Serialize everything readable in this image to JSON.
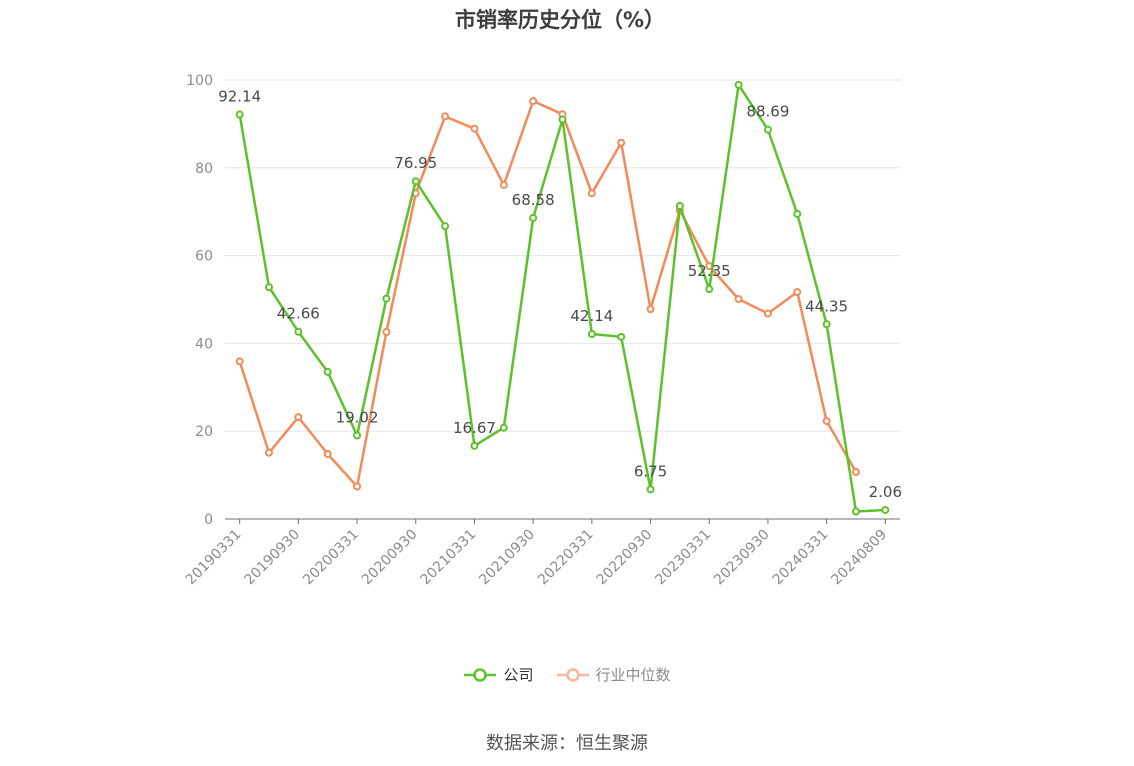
{
  "chart_data": {
    "type": "line",
    "title": "市销率历史分位（%）",
    "x": [
      "20190331",
      "20190630",
      "20190930",
      "20191231",
      "20200331",
      "20200630",
      "20200930",
      "20201231",
      "20210331",
      "20210630",
      "20210930",
      "20211231",
      "20220331",
      "20220630",
      "20220930",
      "20221231",
      "20230331",
      "20230630",
      "20230930",
      "20231231",
      "20240331",
      "20240630",
      "20240809"
    ],
    "x_tick_labels": [
      "20190331",
      "20190930",
      "20200331",
      "20200930",
      "20210331",
      "20210930",
      "20220331",
      "20220930",
      "20230331",
      "20230930",
      "20240331",
      "20240809"
    ],
    "y_ticks": [
      "0",
      "20",
      "40",
      "60",
      "80",
      "100"
    ],
    "ylim": [
      0,
      100
    ],
    "grid": true,
    "legend_position": "bottom",
    "series": [
      {
        "name": "公司",
        "color": "#5dc12c",
        "values": [
          92.14,
          52.8,
          42.66,
          33.5,
          19.02,
          50.2,
          76.95,
          66.7,
          16.67,
          20.8,
          68.58,
          91.0,
          42.14,
          41.5,
          6.75,
          71.3,
          52.35,
          98.9,
          88.69,
          69.5,
          44.35,
          1.7,
          2.06
        ],
        "data_labels": [
          {
            "index": 0,
            "text": "92.14"
          },
          {
            "index": 2,
            "text": "42.66"
          },
          {
            "index": 4,
            "text": "19.02"
          },
          {
            "index": 6,
            "text": "76.95"
          },
          {
            "index": 8,
            "text": "16.67"
          },
          {
            "index": 10,
            "text": "68.58"
          },
          {
            "index": 12,
            "text": "42.14"
          },
          {
            "index": 14,
            "text": "6.75"
          },
          {
            "index": 16,
            "text": "52.35"
          },
          {
            "index": 18,
            "text": "88.69"
          },
          {
            "index": 20,
            "text": "44.35"
          },
          {
            "index": 22,
            "text": "2.06"
          }
        ]
      },
      {
        "name": "行业中位数",
        "color": "#f28a5a",
        "values": [
          35.9,
          15.1,
          23.2,
          14.8,
          7.4,
          42.6,
          74.2,
          91.7,
          88.9,
          76.1,
          95.2,
          92.2,
          74.2,
          85.7,
          47.8,
          70.3,
          57.6,
          50.1,
          46.8,
          51.7,
          22.3,
          10.7,
          null
        ]
      }
    ]
  },
  "legend": {
    "items": [
      {
        "label": "公司",
        "color": "#5dc12c",
        "text_color": "#333333"
      },
      {
        "label": "行业中位数",
        "color": "#f9b89b",
        "text_color": "#8c8c8c"
      }
    ]
  },
  "source_note": "数据来源：恒生聚源"
}
